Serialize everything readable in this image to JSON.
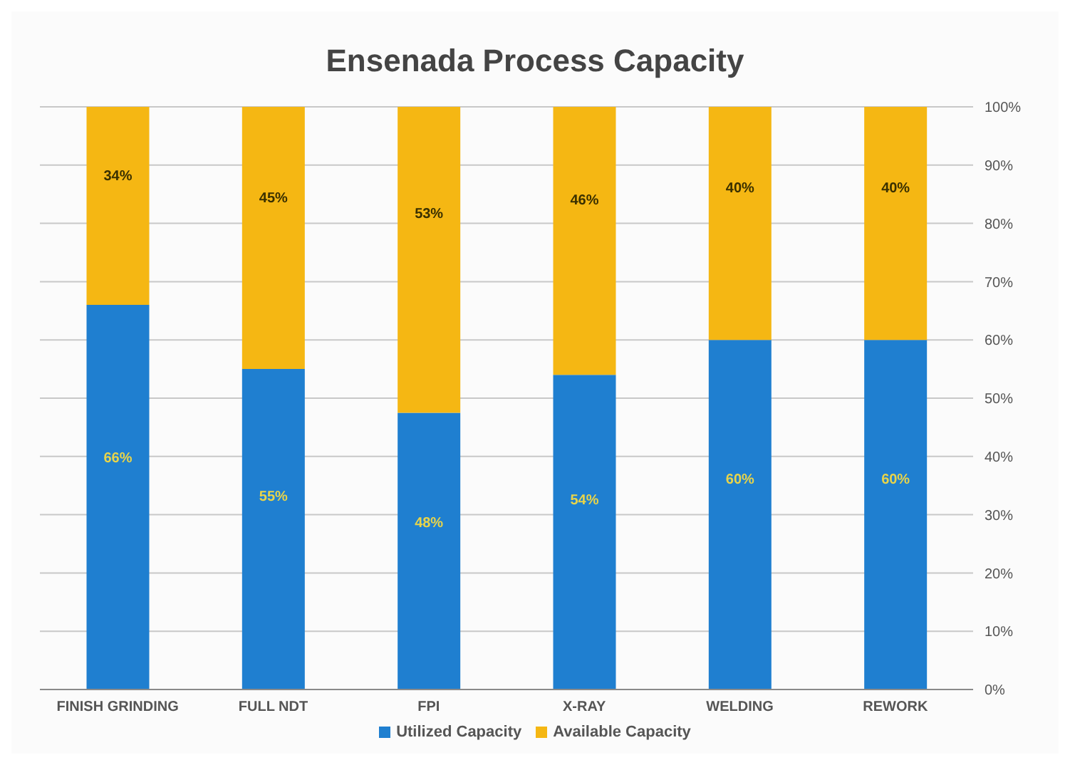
{
  "chart_data": {
    "type": "bar",
    "title": "Ensenada Process Capacity",
    "categories": [
      "FINISH GRINDING",
      "FULL NDT",
      "FPI",
      "X-RAY",
      "WELDING",
      "REWORK"
    ],
    "stacked": true,
    "series": [
      {
        "name": "Utilized Capacity",
        "color": "#1f7fd0",
        "values": [
          66,
          55,
          47.5,
          54,
          60,
          60
        ],
        "value_labels": [
          "66%",
          "55%",
          "48%",
          "54%",
          "60%",
          "60%"
        ]
      },
      {
        "name": "Available Capacity",
        "color": "#f5b713",
        "values": [
          34,
          45,
          52.5,
          46,
          40,
          40
        ],
        "value_labels": [
          "34%",
          "45%",
          "53%",
          "46%",
          "40%",
          "40%"
        ]
      }
    ],
    "ylim": [
      0,
      100
    ],
    "yticks": [
      {
        "value": 0,
        "label": "0%"
      },
      {
        "value": 10,
        "label": "10%"
      },
      {
        "value": 20,
        "label": "20%"
      },
      {
        "value": 30,
        "label": "30%"
      },
      {
        "value": 40,
        "label": "40%"
      },
      {
        "value": 50,
        "label": "50%"
      },
      {
        "value": 60,
        "label": "60%"
      },
      {
        "value": 70,
        "label": "70%"
      },
      {
        "value": 80,
        "label": "80%"
      },
      {
        "value": 90,
        "label": "90%"
      },
      {
        "value": 100,
        "label": "100%"
      }
    ],
    "grid": "y",
    "legend": "bottom"
  }
}
